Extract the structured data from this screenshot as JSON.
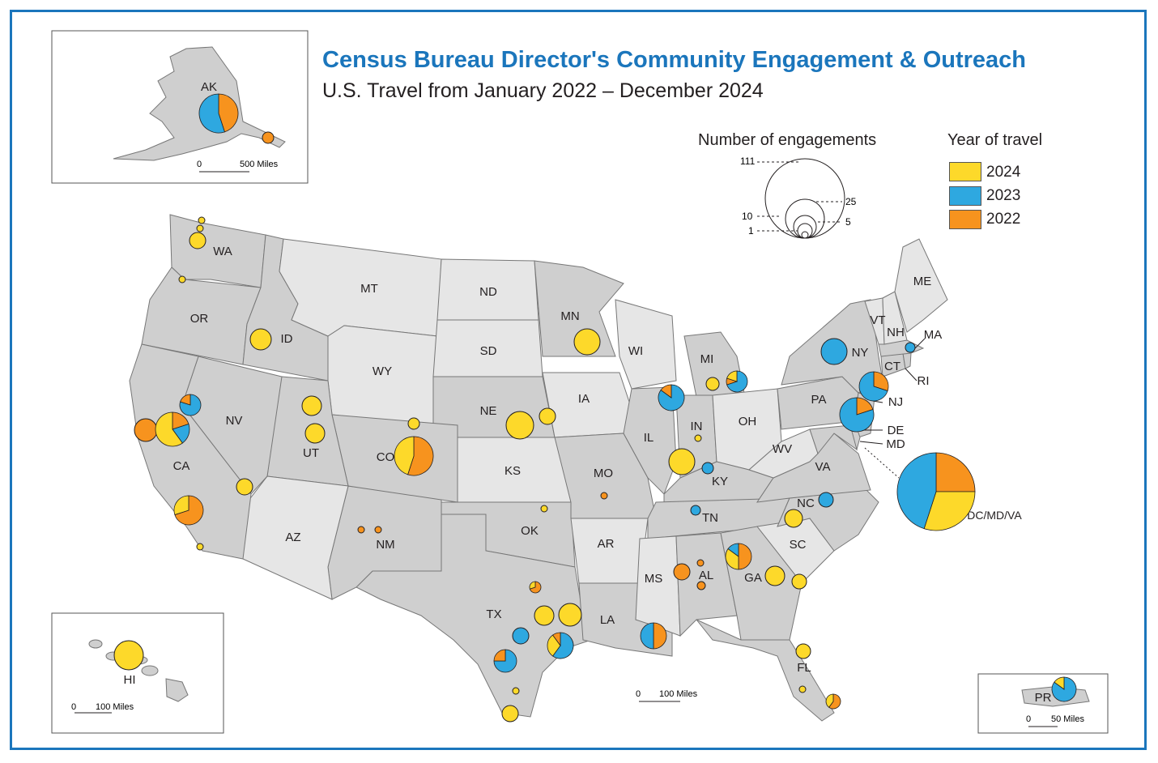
{
  "title": "Census Bureau Director's Community Engagement & Outreach",
  "subtitle": "U.S. Travel from January 2022 – December 2024",
  "colors": {
    "y2024": "#fdd92a",
    "y2023": "#2ea8e0",
    "y2022": "#f7931e",
    "border": "#1b76bc",
    "visited": "#cfcfcf",
    "notvisited": "#e6e6e6"
  },
  "size_legend": {
    "title": "Number of engagements",
    "values": [
      "111",
      "25",
      "10",
      "5",
      "1"
    ]
  },
  "year_legend": {
    "title": "Year of travel",
    "items": [
      "2024",
      "2023",
      "2022"
    ]
  },
  "scales": {
    "alaska": {
      "zero": "0",
      "dist": "500 Miles"
    },
    "main": {
      "zero": "0",
      "dist": "100 Miles"
    },
    "hawaii": {
      "zero": "0",
      "dist": "100 Miles"
    },
    "pr": {
      "zero": "0",
      "dist": "50 Miles"
    }
  },
  "states": [
    "WA",
    "OR",
    "ID",
    "MT",
    "ND",
    "MN",
    "WI",
    "MI",
    "NY",
    "VT",
    "NH",
    "ME",
    "MA",
    "CT",
    "RI",
    "NJ",
    "PA",
    "OH",
    "IN",
    "IL",
    "IA",
    "SD",
    "WY",
    "NV",
    "CA",
    "UT",
    "CO",
    "NE",
    "KS",
    "MO",
    "KY",
    "WV",
    "VA",
    "DE",
    "MD",
    "NC",
    "TN",
    "AR",
    "OK",
    "NM",
    "AZ",
    "TX",
    "LA",
    "MS",
    "AL",
    "GA",
    "SC",
    "FL",
    "AK",
    "HI",
    "PR",
    "DC/MD/VA"
  ]
}
